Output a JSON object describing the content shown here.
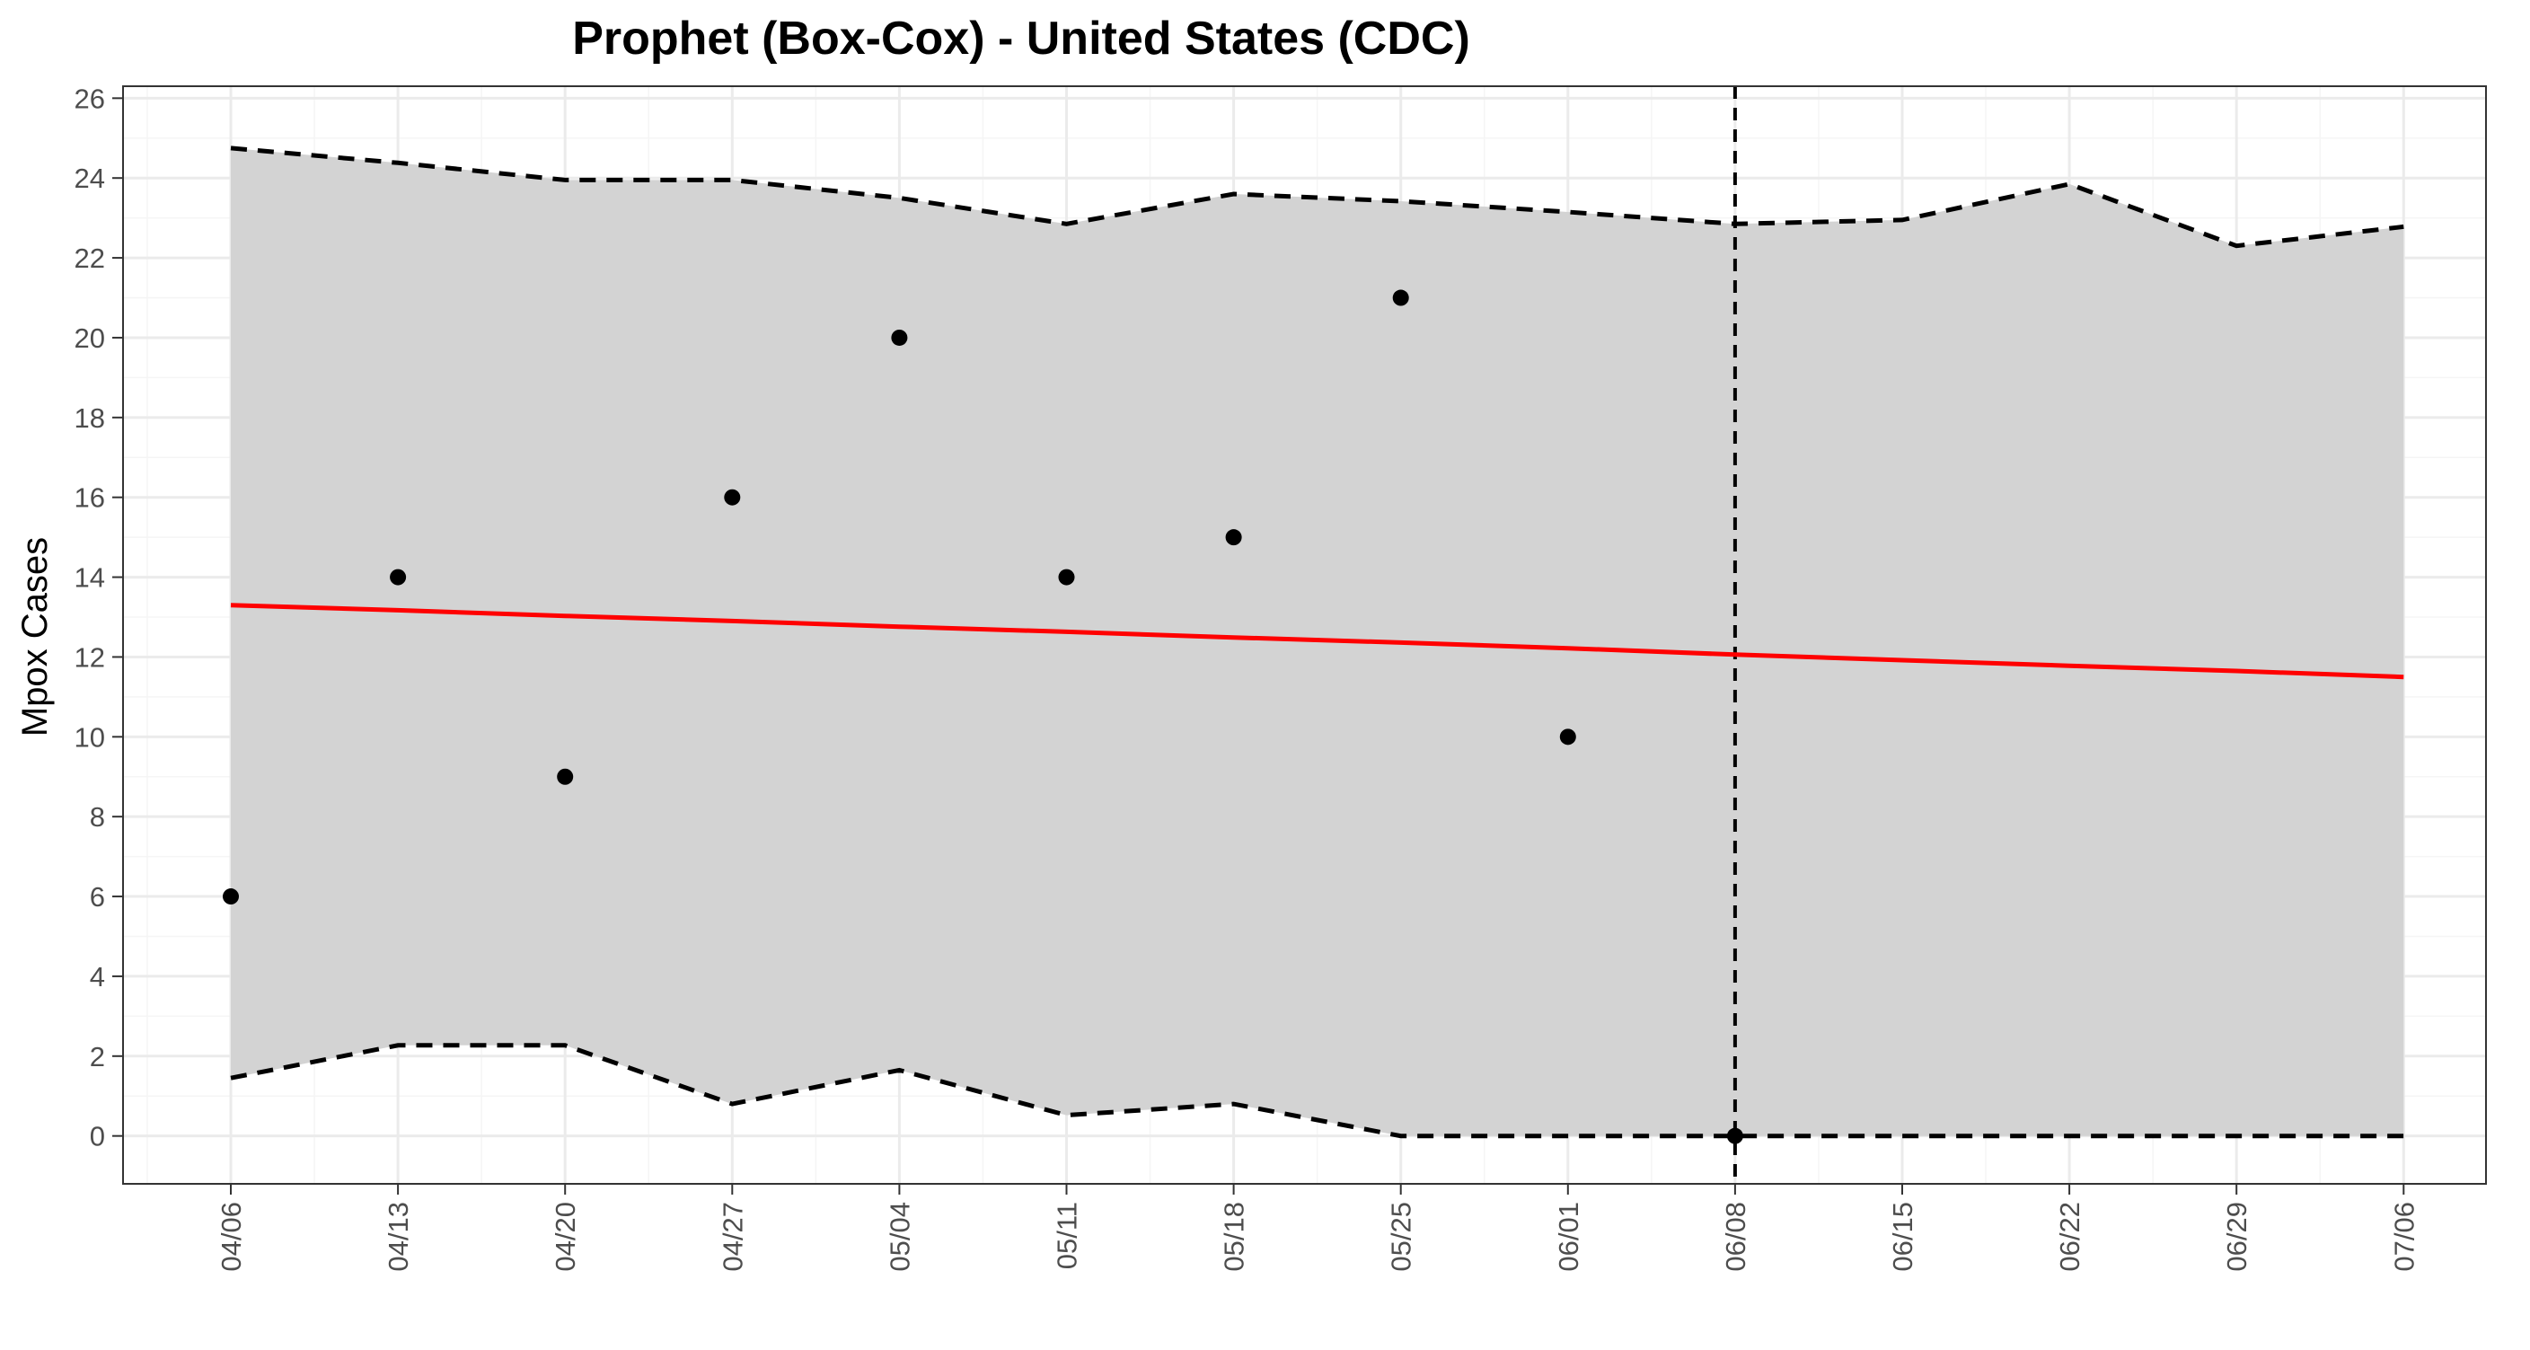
{
  "chart_data": {
    "type": "line",
    "title": "Prophet (Box-Cox) - United States (CDC)",
    "xlabel": "",
    "ylabel": "Mpox Cases",
    "categories": [
      "04/06",
      "04/13",
      "04/20",
      "04/27",
      "05/04",
      "05/11",
      "05/18",
      "05/25",
      "06/01",
      "06/08",
      "06/15",
      "06/22",
      "06/29",
      "07/06"
    ],
    "ylim": [
      -1.2,
      26.3
    ],
    "y_ticks": [
      "0",
      "2",
      "4",
      "6",
      "8",
      "10",
      "12",
      "14",
      "16",
      "18",
      "20",
      "22",
      "24",
      "26"
    ],
    "grid": true,
    "series": [
      {
        "role": "forecast",
        "values": [
          13.3,
          13.17,
          13.03,
          12.9,
          12.76,
          12.63,
          12.49,
          12.36,
          12.22,
          12.06,
          11.92,
          11.78,
          11.65,
          11.5
        ]
      },
      {
        "role": "upper_bound",
        "values": [
          24.75,
          24.38,
          23.95,
          23.95,
          23.5,
          22.85,
          23.6,
          23.42,
          23.15,
          22.85,
          22.95,
          23.85,
          22.3,
          22.78
        ]
      },
      {
        "role": "lower_bound",
        "values": [
          1.45,
          2.27,
          2.27,
          0.8,
          1.65,
          0.52,
          0.8,
          0.0,
          0.0,
          0.0,
          0.0,
          0.0,
          0.0,
          0.0
        ]
      },
      {
        "role": "observed",
        "values": [
          6,
          14,
          9,
          16,
          20,
          14,
          15,
          21,
          10,
          0,
          null,
          null,
          null,
          null
        ]
      }
    ],
    "vertical_line_at": "06/08",
    "colors": {
      "forecast": "#ff0000",
      "band": "#d3d3d3",
      "bounds": "#000000",
      "points": "#000000",
      "grid_major": "#ebebeb",
      "grid_minor": "#f5f5f5",
      "axis_text": "#4d4d4d",
      "panel_border": "#333333"
    }
  }
}
